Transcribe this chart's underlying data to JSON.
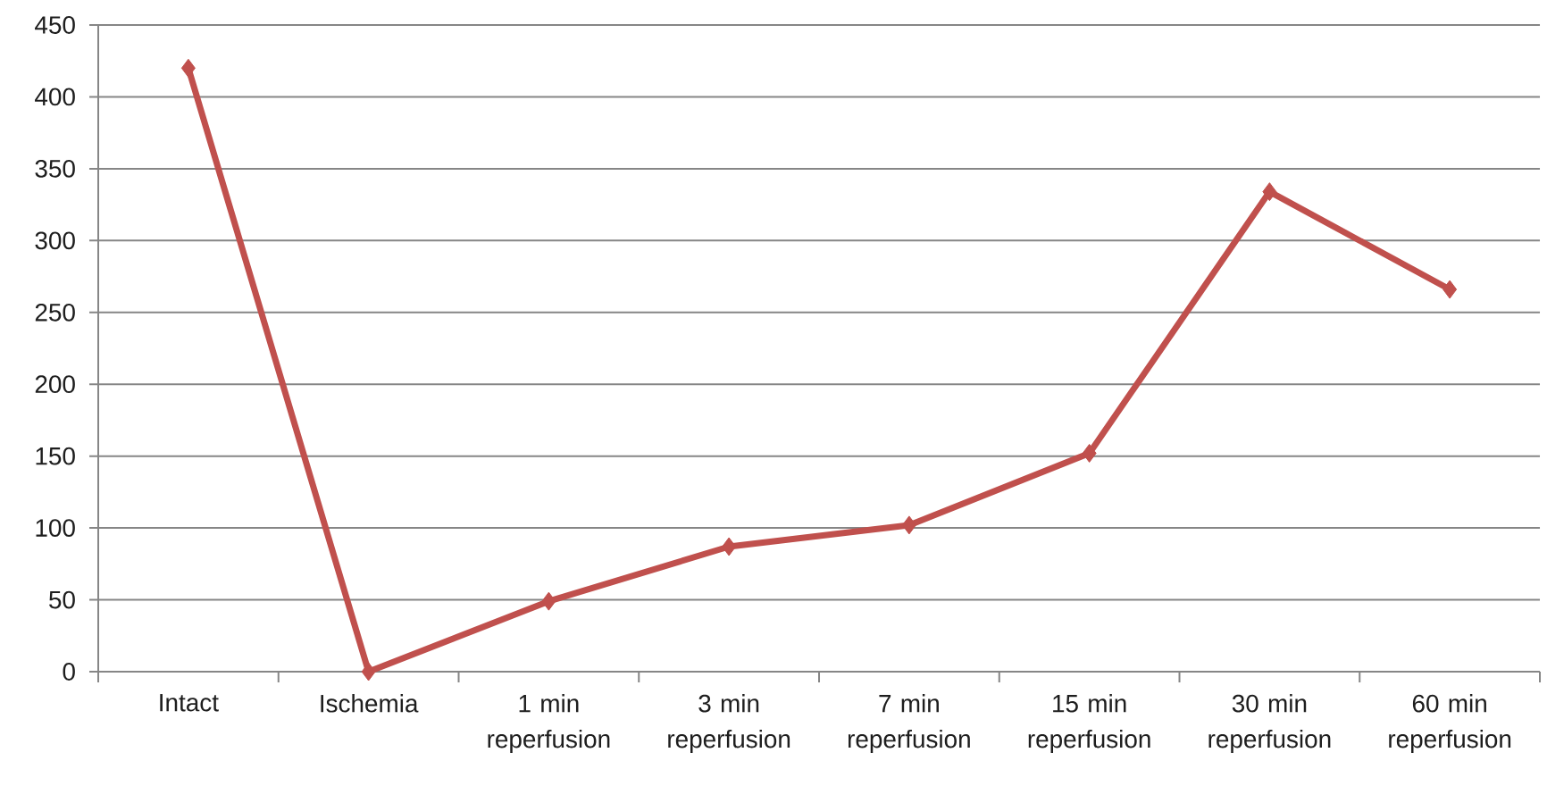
{
  "chart_data": {
    "type": "line",
    "categories": [
      "Intact",
      "Ischemia",
      "1 min reperfusion",
      "3 min reperfusion",
      "7 min reperfusion",
      "15 min reperfusion",
      "30 min reperfusion",
      "60 min reperfusion"
    ],
    "values": [
      420,
      0,
      49,
      87,
      102,
      152,
      334,
      266
    ],
    "color": "#c0504d",
    "marker": "diamond",
    "line_style": "solid",
    "grid": "y",
    "ylim": [
      0,
      450
    ],
    "yticks": [
      0,
      50,
      100,
      150,
      200,
      250,
      300,
      350,
      400,
      450
    ]
  }
}
